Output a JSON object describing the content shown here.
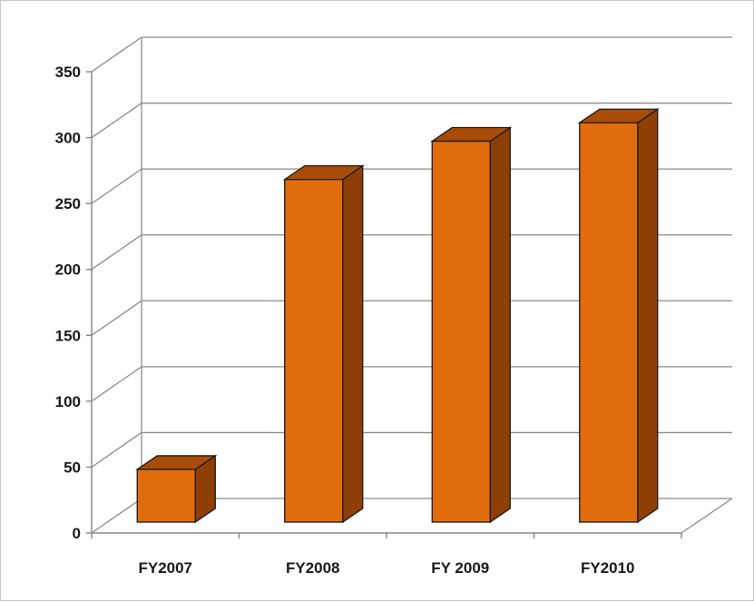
{
  "chart_data": {
    "type": "bar",
    "categories": [
      "FY2007",
      "FY2008",
      "FY 2009",
      "FY2010"
    ],
    "values": [
      40,
      260,
      289,
      303
    ],
    "y_ticks": [
      "0",
      "50",
      "100",
      "150",
      "200",
      "250",
      "300",
      "350"
    ],
    "ylim": [
      0,
      350
    ],
    "grid": true,
    "legend": "none",
    "colors": {
      "bar_front": "#e06c0c",
      "bar_side": "#8e3f05",
      "bar_top": "#a94c08",
      "bar_outline": "#1a1a1a",
      "grid": "#8a8a8a",
      "axis": "#8a8a8a"
    }
  }
}
